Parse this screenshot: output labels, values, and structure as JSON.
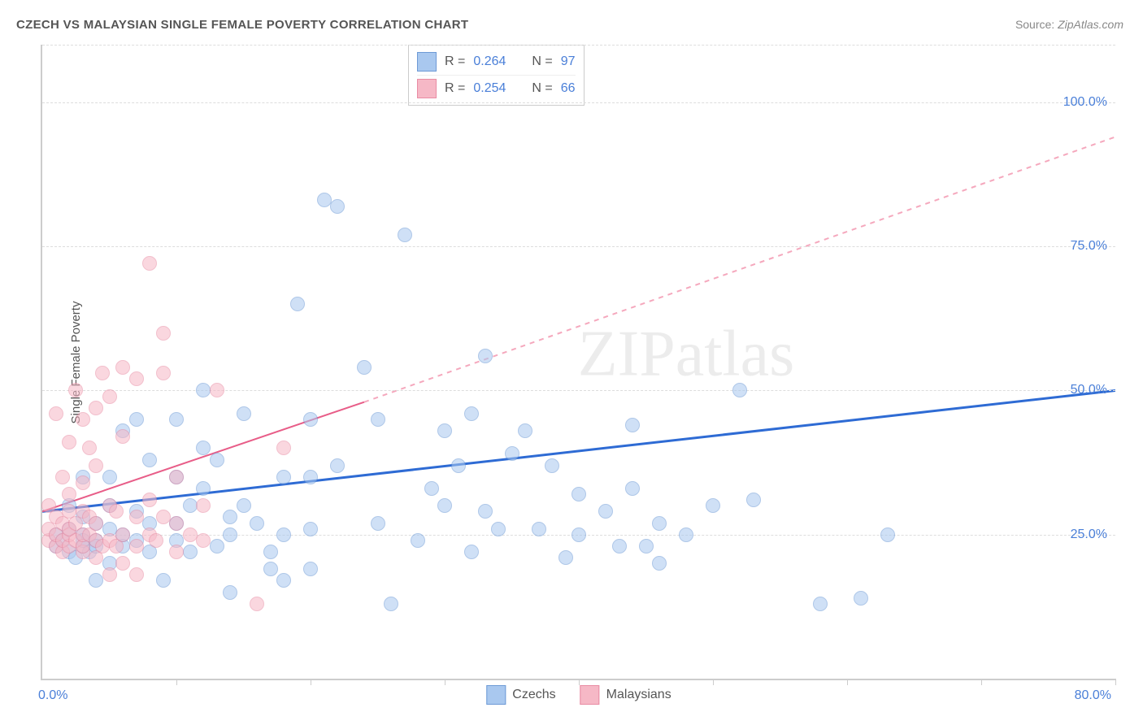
{
  "title": "CZECH VS MALAYSIAN SINGLE FEMALE POVERTY CORRELATION CHART",
  "source_label": "Source:",
  "source_value": "ZipAtlas.com",
  "watermark": "ZIPatlas",
  "chart": {
    "type": "scatter",
    "y_axis_title": "Single Female Poverty",
    "xlim": [
      0,
      80
    ],
    "ylim": [
      0,
      110
    ],
    "x_ticks": [
      0,
      10,
      20,
      30,
      40,
      50,
      60,
      70,
      80
    ],
    "x_tick_labels": {
      "first": "0.0%",
      "last": "80.0%"
    },
    "y_gridlines": [
      25,
      50,
      75,
      100,
      110
    ],
    "y_labels": {
      "25": "25.0%",
      "50": "50.0%",
      "75": "75.0%",
      "100": "100.0%"
    },
    "background_color": "#ffffff",
    "grid_color": "#dddddd",
    "axis_color": "#cccccc",
    "tick_label_color": "#4a7fd8",
    "point_radius": 8,
    "point_opacity": 0.55,
    "series": [
      {
        "name": "Czechs",
        "fill_color": "#a9c8ef",
        "stroke_color": "#6d9ad6",
        "R": "0.264",
        "N": "97",
        "trend": {
          "solid": {
            "x1": 0,
            "y1": 29,
            "x2": 80,
            "y2": 50
          },
          "color": "#2e6bd4",
          "width": 3
        },
        "points": [
          [
            1,
            23
          ],
          [
            1,
            25
          ],
          [
            1.5,
            24
          ],
          [
            2,
            22
          ],
          [
            2,
            26
          ],
          [
            2,
            30
          ],
          [
            2.5,
            21
          ],
          [
            3,
            23
          ],
          [
            3,
            25
          ],
          [
            3,
            28
          ],
          [
            3,
            35
          ],
          [
            3.5,
            22
          ],
          [
            4,
            24
          ],
          [
            4,
            27
          ],
          [
            4,
            17
          ],
          [
            5,
            26
          ],
          [
            5,
            30
          ],
          [
            5,
            20
          ],
          [
            5,
            35
          ],
          [
            6,
            23
          ],
          [
            6,
            25
          ],
          [
            6,
            43
          ],
          [
            7,
            24
          ],
          [
            7,
            29
          ],
          [
            7,
            45
          ],
          [
            8,
            22
          ],
          [
            8,
            27
          ],
          [
            8,
            38
          ],
          [
            9,
            17
          ],
          [
            10,
            24
          ],
          [
            10,
            27
          ],
          [
            10,
            35
          ],
          [
            10,
            45
          ],
          [
            11,
            22
          ],
          [
            11,
            30
          ],
          [
            12,
            33
          ],
          [
            12,
            40
          ],
          [
            12,
            50
          ],
          [
            13,
            23
          ],
          [
            13,
            38
          ],
          [
            14,
            15
          ],
          [
            14,
            25
          ],
          [
            14,
            28
          ],
          [
            15,
            46
          ],
          [
            15,
            30
          ],
          [
            16,
            27
          ],
          [
            17,
            22
          ],
          [
            17,
            19
          ],
          [
            18,
            17
          ],
          [
            18,
            25
          ],
          [
            18,
            35
          ],
          [
            19,
            65
          ],
          [
            20,
            35
          ],
          [
            20,
            45
          ],
          [
            20,
            26
          ],
          [
            20,
            19
          ],
          [
            21,
            83
          ],
          [
            22,
            82
          ],
          [
            22,
            37
          ],
          [
            24,
            54
          ],
          [
            25,
            27
          ],
          [
            25,
            45
          ],
          [
            26,
            13
          ],
          [
            27,
            77
          ],
          [
            28,
            24
          ],
          [
            29,
            33
          ],
          [
            30,
            30
          ],
          [
            30,
            43
          ],
          [
            31,
            37
          ],
          [
            32,
            22
          ],
          [
            32,
            46
          ],
          [
            33,
            29
          ],
          [
            33,
            56
          ],
          [
            34,
            26
          ],
          [
            35,
            39
          ],
          [
            36,
            43
          ],
          [
            37,
            26
          ],
          [
            38,
            37
          ],
          [
            39,
            21
          ],
          [
            40,
            32
          ],
          [
            40,
            25
          ],
          [
            42,
            29
          ],
          [
            43,
            23
          ],
          [
            44,
            33
          ],
          [
            44,
            44
          ],
          [
            45,
            23
          ],
          [
            46,
            27
          ],
          [
            46,
            20
          ],
          [
            48,
            25
          ],
          [
            50,
            30
          ],
          [
            52,
            50
          ],
          [
            53,
            31
          ],
          [
            58,
            13
          ],
          [
            61,
            14
          ],
          [
            63,
            25
          ],
          [
            3,
            24
          ],
          [
            4,
            23
          ]
        ]
      },
      {
        "name": "Malaysians",
        "fill_color": "#f6b8c6",
        "stroke_color": "#e98ba3",
        "R": "0.254",
        "N": "66",
        "trend": {
          "solid": {
            "x1": 0,
            "y1": 29,
            "x2": 24,
            "y2": 48
          },
          "dashed": {
            "x1": 24,
            "y1": 48,
            "x2": 80,
            "y2": 94
          },
          "color": "#e85d88",
          "dash_color": "#f5a8bd",
          "width": 2
        },
        "points": [
          [
            0.5,
            24
          ],
          [
            0.5,
            26
          ],
          [
            0.5,
            30
          ],
          [
            1,
            23
          ],
          [
            1,
            25
          ],
          [
            1,
            28
          ],
          [
            1,
            46
          ],
          [
            1.5,
            22
          ],
          [
            1.5,
            24
          ],
          [
            1.5,
            27
          ],
          [
            1.5,
            35
          ],
          [
            2,
            23
          ],
          [
            2,
            25
          ],
          [
            2,
            26
          ],
          [
            2,
            29
          ],
          [
            2,
            32
          ],
          [
            2,
            41
          ],
          [
            2.5,
            24
          ],
          [
            2.5,
            27
          ],
          [
            2.5,
            50
          ],
          [
            3,
            22
          ],
          [
            3,
            23
          ],
          [
            3,
            25
          ],
          [
            3,
            29
          ],
          [
            3,
            34
          ],
          [
            3,
            45
          ],
          [
            3.5,
            25
          ],
          [
            3.5,
            28
          ],
          [
            3.5,
            40
          ],
          [
            4,
            21
          ],
          [
            4,
            24
          ],
          [
            4,
            27
          ],
          [
            4,
            37
          ],
          [
            4,
            47
          ],
          [
            4.5,
            23
          ],
          [
            4.5,
            53
          ],
          [
            5,
            18
          ],
          [
            5,
            24
          ],
          [
            5,
            30
          ],
          [
            5,
            49
          ],
          [
            5.5,
            23
          ],
          [
            5.5,
            29
          ],
          [
            6,
            20
          ],
          [
            6,
            25
          ],
          [
            6,
            42
          ],
          [
            6,
            54
          ],
          [
            7,
            18
          ],
          [
            7,
            23
          ],
          [
            7,
            28
          ],
          [
            7,
            52
          ],
          [
            8,
            25
          ],
          [
            8,
            31
          ],
          [
            8,
            72
          ],
          [
            8.5,
            24
          ],
          [
            9,
            28
          ],
          [
            9,
            60
          ],
          [
            9,
            53
          ],
          [
            10,
            22
          ],
          [
            10,
            27
          ],
          [
            10,
            35
          ],
          [
            11,
            25
          ],
          [
            12,
            24
          ],
          [
            12,
            30
          ],
          [
            13,
            50
          ],
          [
            16,
            13
          ],
          [
            18,
            40
          ]
        ]
      }
    ]
  },
  "legend_top": {
    "rows": [
      {
        "swatch_fill": "#a9c8ef",
        "swatch_stroke": "#6d9ad6",
        "r_label": "R =",
        "r_value": "0.264",
        "n_label": "N =",
        "n_value": "97"
      },
      {
        "swatch_fill": "#f6b8c6",
        "swatch_stroke": "#e98ba3",
        "r_label": "R =",
        "r_value": "0.254",
        "n_label": "N =",
        "n_value": "66"
      }
    ]
  },
  "legend_bottom": {
    "items": [
      {
        "swatch_fill": "#a9c8ef",
        "swatch_stroke": "#6d9ad6",
        "label": "Czechs"
      },
      {
        "swatch_fill": "#f6b8c6",
        "swatch_stroke": "#e98ba3",
        "label": "Malaysians"
      }
    ]
  }
}
